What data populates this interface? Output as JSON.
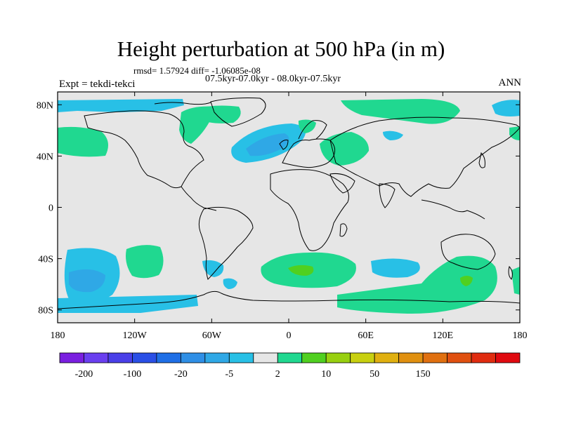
{
  "title": "Height perturbation at 500 hPa (in m)",
  "stats": "rmsd= 1.57924 diff= -1.06085e-08",
  "periods": "07.5kyr-07.0kyr - 08.0kyr-07.5kyr",
  "expt": "Expt = tekdi-tekci",
  "season": "ANN",
  "axes": {
    "lat_ticks": [
      {
        "lat": 80,
        "label": "80N"
      },
      {
        "lat": 40,
        "label": "40N"
      },
      {
        "lat": 0,
        "label": "0"
      },
      {
        "lat": -40,
        "label": "40S"
      },
      {
        "lat": -80,
        "label": "80S"
      }
    ],
    "lon_ticks": [
      {
        "lon": -180,
        "label": "180"
      },
      {
        "lon": -120,
        "label": "120W"
      },
      {
        "lon": -60,
        "label": "60W"
      },
      {
        "lon": 0,
        "label": "0"
      },
      {
        "lon": 60,
        "label": "60E"
      },
      {
        "lon": 120,
        "label": "120E"
      },
      {
        "lon": 180,
        "label": "180"
      }
    ],
    "lat_range": [
      -90,
      90
    ],
    "lon_range": [
      -180,
      180
    ]
  },
  "colorbar": {
    "colors": [
      "#7a1fe0",
      "#6a3ff0",
      "#4a3fe8",
      "#2a4fe6",
      "#1f6fe6",
      "#2f8fe6",
      "#2fa8e6",
      "#28c0e6",
      "#e6e6e6",
      "#20d890",
      "#50d020",
      "#98d010",
      "#c8d010",
      "#e0b010",
      "#e09010",
      "#e07010",
      "#e05010",
      "#e02c10",
      "#e00a10"
    ],
    "labels": [
      {
        "edge": 1,
        "text": "-200"
      },
      {
        "edge": 3,
        "text": "-100"
      },
      {
        "edge": 5,
        "text": "-20"
      },
      {
        "edge": 7,
        "text": "-5"
      },
      {
        "edge": 9,
        "text": "2"
      },
      {
        "edge": 11,
        "text": "10"
      },
      {
        "edge": 13,
        "text": "50"
      },
      {
        "edge": 15,
        "text": "150"
      }
    ]
  },
  "field": {
    "background": "#e6e6e6",
    "negative_color": "#28c0e6",
    "negative_strong_color": "#2fa8e6",
    "positive_color": "#20d890",
    "positive_strong_color": "#50d020"
  }
}
